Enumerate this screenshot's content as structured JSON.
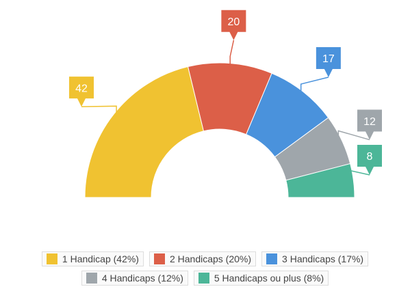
{
  "chart_data": {
    "type": "semi-donut",
    "categories": [
      "1 Handicap (42%)",
      "2 Handicaps (20%)",
      "3 Handicaps (17%)",
      "4 Handicaps (12%)",
      "5 Handicaps ou plus (8%)"
    ],
    "values": [
      42,
      20,
      17,
      12,
      8
    ],
    "colors": [
      "#f0c231",
      "#dc5f48",
      "#4a92dc",
      "#9fa6ab",
      "#4cb698"
    ]
  }
}
